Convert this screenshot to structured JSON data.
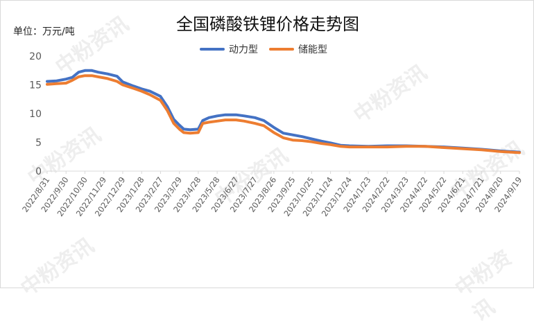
{
  "title": "全国磷酸铁锂价格走势图",
  "unit_label": "单位：万元/吨",
  "watermark": "中粉资讯",
  "colors": {
    "power": "#4472C4",
    "storage": "#ED7D31",
    "axis": "#d9d9d9",
    "text": "#595959"
  },
  "chart_data": {
    "type": "line",
    "title": "全国磷酸铁锂价格走势图",
    "xlabel": "",
    "ylabel": "单位：万元/吨",
    "ylim": [
      0,
      20
    ],
    "yticks": [
      0,
      5,
      10,
      15,
      20
    ],
    "grid": false,
    "legend": "top-center",
    "xlim": [
      "2022/8/31",
      "2024/9/19"
    ],
    "xticks": [
      "2022/8/31",
      "2022/9/30",
      "2022/10/30",
      "2022/11/29",
      "2022/12/29",
      "2023/1/28",
      "2023/2/27",
      "2023/3/29",
      "2023/4/28",
      "2023/5/28",
      "2023/6/27",
      "2023/7/27",
      "2023/8/26",
      "2023/9/25",
      "2023/10/25",
      "2023/11/24",
      "2023/12/24",
      "2024/1/23",
      "2024/2/22",
      "2024/3/23",
      "2024/4/22",
      "2024/5/22",
      "2024/6/21",
      "2024/7/21",
      "2024/8/20",
      "2024/9/19"
    ],
    "series": [
      {
        "name": "动力型",
        "color": "#4472C4",
        "points": [
          [
            "2022/8/31",
            15.6
          ],
          [
            "2022/9/15",
            15.7
          ],
          [
            "2022/9/30",
            16.0
          ],
          [
            "2022/10/10",
            16.3
          ],
          [
            "2022/10/20",
            17.2
          ],
          [
            "2022/10/30",
            17.5
          ],
          [
            "2022/11/10",
            17.5
          ],
          [
            "2022/11/20",
            17.2
          ],
          [
            "2022/12/5",
            16.9
          ],
          [
            "2022/12/20",
            16.5
          ],
          [
            "2022/12/29",
            15.5
          ],
          [
            "2023/1/15",
            14.8
          ],
          [
            "2023/1/28",
            14.3
          ],
          [
            "2023/2/10",
            13.9
          ],
          [
            "2023/2/27",
            13.0
          ],
          [
            "2023/3/10",
            11.2
          ],
          [
            "2023/3/20",
            9.0
          ],
          [
            "2023/3/29",
            8.0
          ],
          [
            "2023/4/5",
            7.3
          ],
          [
            "2023/4/15",
            7.2
          ],
          [
            "2023/4/28",
            7.3
          ],
          [
            "2023/5/5",
            8.8
          ],
          [
            "2023/5/15",
            9.3
          ],
          [
            "2023/5/28",
            9.6
          ],
          [
            "2023/6/10",
            9.8
          ],
          [
            "2023/6/27",
            9.8
          ],
          [
            "2023/7/10",
            9.6
          ],
          [
            "2023/7/27",
            9.3
          ],
          [
            "2023/8/10",
            8.8
          ],
          [
            "2023/8/26",
            7.6
          ],
          [
            "2023/9/10",
            6.6
          ],
          [
            "2023/9/25",
            6.3
          ],
          [
            "2023/10/10",
            6.0
          ],
          [
            "2023/10/25",
            5.6
          ],
          [
            "2023/11/10",
            5.2
          ],
          [
            "2023/11/24",
            4.9
          ],
          [
            "2023/12/10",
            4.5
          ],
          [
            "2023/12/24",
            4.4
          ],
          [
            "2024/1/23",
            4.3
          ],
          [
            "2024/2/22",
            4.4
          ],
          [
            "2024/3/23",
            4.4
          ],
          [
            "2024/4/22",
            4.3
          ],
          [
            "2024/5/22",
            4.2
          ],
          [
            "2024/6/21",
            4.0
          ],
          [
            "2024/7/21",
            3.8
          ],
          [
            "2024/8/20",
            3.5
          ],
          [
            "2024/9/19",
            3.3
          ]
        ]
      },
      {
        "name": "储能型",
        "color": "#ED7D31",
        "points": [
          [
            "2022/8/31",
            15.1
          ],
          [
            "2022/9/15",
            15.2
          ],
          [
            "2022/9/30",
            15.3
          ],
          [
            "2022/10/10",
            15.8
          ],
          [
            "2022/10/20",
            16.4
          ],
          [
            "2022/10/30",
            16.6
          ],
          [
            "2022/11/10",
            16.6
          ],
          [
            "2022/11/20",
            16.4
          ],
          [
            "2022/12/5",
            16.1
          ],
          [
            "2022/12/20",
            15.6
          ],
          [
            "2022/12/29",
            15.0
          ],
          [
            "2023/1/15",
            14.4
          ],
          [
            "2023/1/28",
            13.9
          ],
          [
            "2023/2/10",
            13.3
          ],
          [
            "2023/2/27",
            12.3
          ],
          [
            "2023/3/10",
            10.5
          ],
          [
            "2023/3/20",
            8.3
          ],
          [
            "2023/3/29",
            7.3
          ],
          [
            "2023/4/5",
            6.7
          ],
          [
            "2023/4/15",
            6.6
          ],
          [
            "2023/4/28",
            6.7
          ],
          [
            "2023/5/5",
            8.3
          ],
          [
            "2023/5/15",
            8.5
          ],
          [
            "2023/5/28",
            8.7
          ],
          [
            "2023/6/10",
            8.9
          ],
          [
            "2023/6/27",
            8.9
          ],
          [
            "2023/7/10",
            8.7
          ],
          [
            "2023/7/27",
            8.3
          ],
          [
            "2023/8/10",
            7.9
          ],
          [
            "2023/8/26",
            6.7
          ],
          [
            "2023/9/10",
            5.8
          ],
          [
            "2023/9/25",
            5.4
          ],
          [
            "2023/10/10",
            5.3
          ],
          [
            "2023/10/25",
            5.1
          ],
          [
            "2023/11/10",
            4.8
          ],
          [
            "2023/11/24",
            4.6
          ],
          [
            "2023/12/10",
            4.3
          ],
          [
            "2023/12/24",
            4.2
          ],
          [
            "2024/1/23",
            4.2
          ],
          [
            "2024/2/22",
            4.2
          ],
          [
            "2024/3/23",
            4.3
          ],
          [
            "2024/4/22",
            4.3
          ],
          [
            "2024/5/22",
            4.1
          ],
          [
            "2024/6/21",
            3.9
          ],
          [
            "2024/7/21",
            3.7
          ],
          [
            "2024/8/20",
            3.4
          ],
          [
            "2024/9/19",
            3.2
          ]
        ]
      }
    ]
  }
}
